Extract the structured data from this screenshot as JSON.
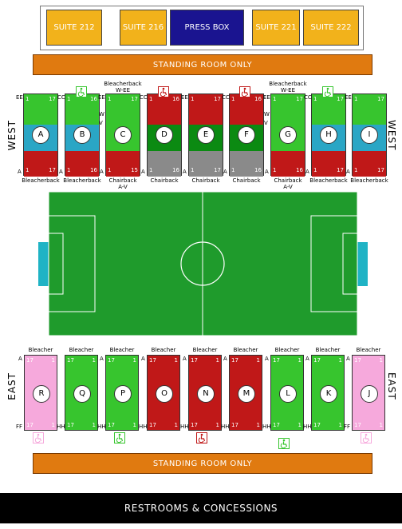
{
  "suites": [
    {
      "label": "SUITE 212",
      "color": "#f2b21b"
    },
    {
      "label": "SUITE 216",
      "color": "#f2b21b"
    },
    {
      "label": "PRESS BOX",
      "color": "#1a1490"
    },
    {
      "label": "SUITE 221",
      "color": "#f2b21b"
    },
    {
      "label": "SUITE 222",
      "color": "#f2b21b"
    }
  ],
  "standing_room_top": "STANDING ROOM ONLY",
  "standing_room_bottom": "STANDING ROOM ONLY",
  "restrooms": "RESTROOMS & CONCESSIONS",
  "west_label": "WEST",
  "east_label": "EAST",
  "colors": {
    "green": "#37c52e",
    "dark_green": "#0b8a12",
    "red": "#c01818",
    "blue": "#2aa6c5",
    "gray": "#8a8a8a",
    "pink": "#f6a9dc",
    "field": "#1f9b2c",
    "goal": "#1fb3c5",
    "accessible": "#37c52e",
    "accessible_red": "#c01818",
    "accessible_pink": "#f6a9dc"
  },
  "west_sections": [
    {
      "id": "A",
      "top_label": "",
      "bot_label": "Bleacherback",
      "top_row": "EE",
      "bot_row": "A",
      "top_seats": [
        "1",
        "17"
      ],
      "bot_seats": [
        "1",
        "17"
      ],
      "scheme": "gbr"
    },
    {
      "id": "B",
      "top_label": "",
      "bot_label": "Bleacherback",
      "top_row": "CC",
      "bot_row": "A",
      "top_seats": [
        "1",
        "16"
      ],
      "bot_seats": [
        "1",
        "16"
      ],
      "scheme": "gbr",
      "side_rows": []
    },
    {
      "id": "C",
      "top_label": "Bleacherback\nW-EE",
      "bot_label": "Chairback\nA-V",
      "top_row": "EE",
      "bot_row": "A",
      "top_seats": [
        "1",
        "17"
      ],
      "bot_seats": [
        "1",
        "15"
      ],
      "scheme": "ggr",
      "side_rows": [
        "W",
        "V"
      ]
    },
    {
      "id": "D",
      "top_label": "",
      "bot_label": "Chairback",
      "top_row": "CC",
      "bot_row": "A",
      "top_seats": [
        "1",
        "16"
      ],
      "bot_seats": [
        "1",
        "16"
      ],
      "scheme": "rdg"
    },
    {
      "id": "E",
      "top_label": "",
      "bot_label": "Chairback",
      "top_row": "EE",
      "bot_row": "A",
      "top_seats": [
        "1",
        "17"
      ],
      "bot_seats": [
        "1",
        "17"
      ],
      "scheme": "rdg"
    },
    {
      "id": "F",
      "top_label": "",
      "bot_label": "Chairback",
      "top_row": "CC",
      "bot_row": "A",
      "top_seats": [
        "1",
        "16"
      ],
      "bot_seats": [
        "1",
        "16"
      ],
      "scheme": "rdg"
    },
    {
      "id": "G",
      "top_label": "Bleacherback\nW-EE",
      "bot_label": "Chairback\nA-V",
      "top_row": "EE",
      "bot_row": "A",
      "top_seats": [
        "1",
        "17"
      ],
      "bot_seats": [
        "1",
        "16"
      ],
      "scheme": "ggr",
      "side_rows": [
        "W",
        "V"
      ]
    },
    {
      "id": "H",
      "top_label": "",
      "bot_label": "Bleacherback",
      "top_row": "CC",
      "bot_row": "A",
      "top_seats": [
        "1",
        "17"
      ],
      "bot_seats": [
        "1",
        "17"
      ],
      "scheme": "gbr"
    },
    {
      "id": "I",
      "top_label": "",
      "bot_label": "Bleacherback",
      "top_row": "EE",
      "bot_row": "A",
      "top_seats": [
        "1",
        "17"
      ],
      "bot_seats": [
        "1",
        "17"
      ],
      "scheme": "gbr"
    }
  ],
  "east_sections": [
    {
      "id": "R",
      "label": "Bleacher",
      "top_row": "A",
      "bot_row": "FF",
      "top_seats": [
        "17",
        "1"
      ],
      "bot_seats": [
        "17",
        "1"
      ],
      "color": "pink"
    },
    {
      "id": "Q",
      "label": "Bleacher",
      "top_row": "",
      "bot_row": "HH",
      "top_seats": [
        "17",
        "1"
      ],
      "bot_seats": [
        "17",
        "1"
      ],
      "color": "green"
    },
    {
      "id": "P",
      "label": "Bleacher",
      "top_row": "A",
      "bot_row": "HH",
      "top_seats": [
        "17",
        "1"
      ],
      "bot_seats": [
        "17",
        "1"
      ],
      "color": "green"
    },
    {
      "id": "O",
      "label": "Bleacher",
      "top_row": "A",
      "bot_row": "HH",
      "top_seats": [
        "17",
        "1"
      ],
      "bot_seats": [
        "17",
        "1"
      ],
      "color": "red"
    },
    {
      "id": "N",
      "label": "Bleacher",
      "top_row": "A",
      "bot_row": "HH",
      "top_seats": [
        "17",
        "1"
      ],
      "bot_seats": [
        "17",
        "1"
      ],
      "color": "red"
    },
    {
      "id": "M",
      "label": "Bleacher",
      "top_row": "A",
      "bot_row": "HH",
      "top_seats": [
        "17",
        "1"
      ],
      "bot_seats": [
        "17",
        "1"
      ],
      "color": "red"
    },
    {
      "id": "L",
      "label": "Bleacher",
      "top_row": "A",
      "bot_row": "HH",
      "top_seats": [
        "17",
        "1"
      ],
      "bot_seats": [
        "17",
        "1"
      ],
      "color": "green"
    },
    {
      "id": "K",
      "label": "Bleacher",
      "top_row": "A",
      "bot_row": "HH",
      "top_seats": [
        "17",
        "1"
      ],
      "bot_seats": [
        "17",
        "1"
      ],
      "color": "green"
    },
    {
      "id": "J",
      "label": "Bleacher",
      "top_row": "A",
      "bot_row": "FF",
      "top_seats": [
        "17",
        "1"
      ],
      "bot_seats": [
        "17",
        "1"
      ],
      "color": "pink"
    }
  ],
  "accessible_icon": "wheelchair-icon"
}
